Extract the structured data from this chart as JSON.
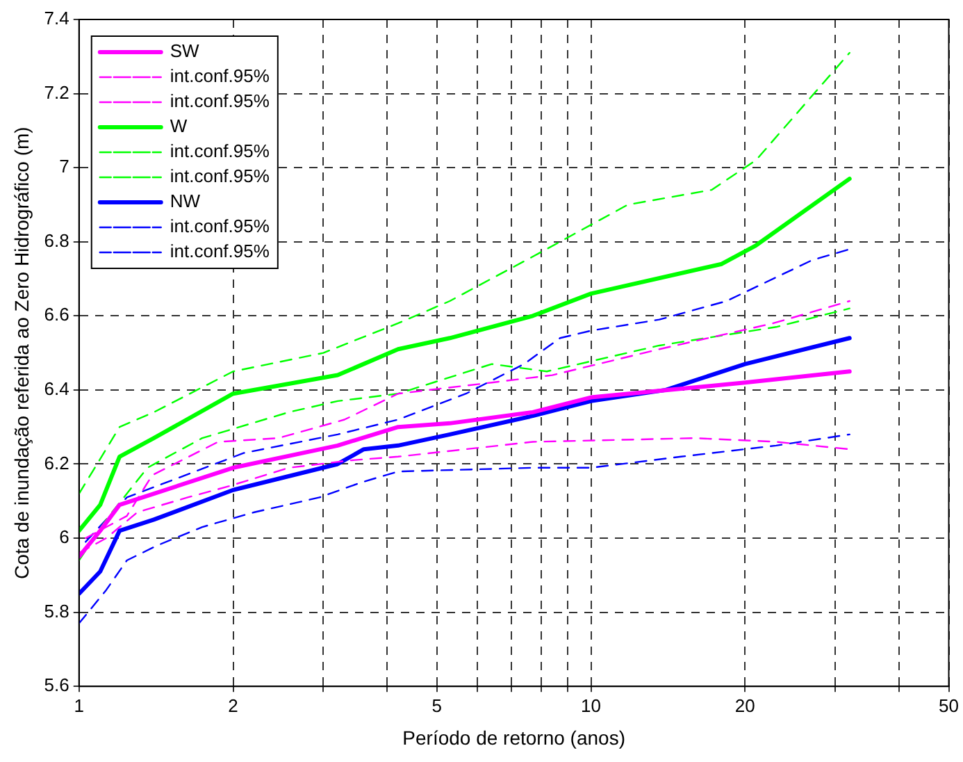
{
  "chart_data": {
    "type": "line",
    "xlabel": "Período de retorno (anos)",
    "ylabel": "Cota de inundação referida ao Zero Hidrográfico (m)",
    "log": "x",
    "grid": true,
    "legend": "top left",
    "marker": "none",
    "xlim": [
      1,
      50
    ],
    "xticks": [
      1,
      2,
      {
        "value": 3,
        "label": null
      },
      {
        "value": 4,
        "label": null
      },
      5,
      {
        "value": 6,
        "label": null
      },
      {
        "value": 7,
        "label": null
      },
      {
        "value": 8,
        "label": null
      },
      {
        "value": 9,
        "label": null
      },
      10,
      20,
      {
        "value": 30,
        "label": null
      },
      {
        "value": 40,
        "label": null
      },
      50
    ],
    "ylim": [
      5.6,
      7.4
    ],
    "yticks": [
      5.6,
      5.8,
      6,
      6.2,
      6.4,
      6.6,
      6.8,
      7,
      7.2,
      7.4
    ],
    "series": [
      {
        "name": "SW",
        "color": "#ff00ff",
        "line_style": "solid",
        "x": [
          1,
          1.1,
          1.2,
          1.4,
          2,
          3.2,
          4.2,
          5.3,
          7.7,
          10,
          20,
          32
        ],
        "values": [
          5.95,
          6.02,
          6.09,
          6.12,
          6.19,
          6.25,
          6.3,
          6.31,
          6.34,
          6.38,
          6.42,
          6.45
        ]
      },
      {
        "name": "int.conf.95%",
        "color": "#ff00ff",
        "line_style": "dashed",
        "x": [
          1.03,
          1.24,
          1.39,
          1.87,
          2.45,
          3.3,
          4.2,
          6.4,
          8.4,
          13.6,
          22.7,
          32
        ],
        "values": [
          6.0,
          6.06,
          6.17,
          6.26,
          6.27,
          6.32,
          6.39,
          6.42,
          6.44,
          6.51,
          6.58,
          6.64
        ]
      },
      {
        "name": "int.conf.95%",
        "color": "#ff00ff",
        "line_style": "dashed",
        "x": [
          1,
          1.13,
          1.3,
          1.63,
          1.96,
          2.57,
          3.39,
          4.2,
          7.7,
          16,
          23,
          32
        ],
        "values": [
          5.96,
          6.0,
          6.07,
          6.11,
          6.14,
          6.19,
          6.21,
          6.22,
          6.26,
          6.27,
          6.26,
          6.24
        ]
      },
      {
        "name": "W",
        "color": "#00ff00",
        "line_style": "solid",
        "x": [
          1,
          1.1,
          1.2,
          1.4,
          2,
          3.2,
          4.2,
          5.3,
          7.7,
          10,
          18,
          21,
          32
        ],
        "values": [
          6.02,
          6.09,
          6.22,
          6.27,
          6.39,
          6.44,
          6.51,
          6.54,
          6.6,
          6.66,
          6.74,
          6.79,
          6.97
        ]
      },
      {
        "name": "int.conf.95%",
        "color": "#00ff00",
        "line_style": "dashed",
        "x": [
          1,
          1.2,
          1.4,
          2,
          3,
          4.2,
          5.3,
          6,
          7.7,
          11.8,
          17.2,
          21,
          32
        ],
        "values": [
          6.12,
          6.3,
          6.34,
          6.45,
          6.5,
          6.58,
          6.64,
          6.68,
          6.76,
          6.9,
          6.94,
          7.02,
          7.31
        ]
      },
      {
        "name": "int.conf.95%",
        "color": "#00ff00",
        "line_style": "dashed",
        "x": [
          1,
          1.13,
          1.36,
          1.74,
          2.57,
          3.2,
          4.2,
          6.4,
          8.2,
          13.6,
          23,
          32
        ],
        "values": [
          5.94,
          6.05,
          6.19,
          6.27,
          6.34,
          6.37,
          6.39,
          6.47,
          6.45,
          6.52,
          6.57,
          6.62
        ]
      },
      {
        "name": "NW",
        "color": "#0000ff",
        "line_style": "solid",
        "x": [
          1,
          1.1,
          1.2,
          1.4,
          2,
          3.2,
          3.6,
          4.2,
          5.3,
          7.7,
          10,
          14,
          20,
          32
        ],
        "values": [
          5.85,
          5.91,
          6.02,
          6.05,
          6.13,
          6.2,
          6.24,
          6.25,
          6.28,
          6.33,
          6.37,
          6.4,
          6.47,
          6.54
        ]
      },
      {
        "name": "int.conf.95%",
        "color": "#0000ff",
        "line_style": "dashed",
        "x": [
          1.03,
          1.24,
          2.1,
          3.2,
          4.2,
          5.7,
          7.4,
          8.7,
          10,
          13.6,
          18.4,
          27,
          32
        ],
        "values": [
          5.99,
          6.11,
          6.23,
          6.28,
          6.32,
          6.39,
          6.47,
          6.54,
          6.56,
          6.59,
          6.64,
          6.75,
          6.78
        ]
      },
      {
        "name": "int.conf.95%",
        "color": "#0000ff",
        "line_style": "dashed",
        "x": [
          1,
          1.13,
          1.24,
          1.42,
          1.74,
          2.2,
          2.95,
          3.55,
          4.2,
          7.7,
          10,
          15,
          23,
          32
        ],
        "values": [
          5.77,
          5.86,
          5.94,
          5.98,
          6.03,
          6.07,
          6.11,
          6.15,
          6.18,
          6.19,
          6.19,
          6.22,
          6.25,
          6.28
        ]
      }
    ]
  }
}
